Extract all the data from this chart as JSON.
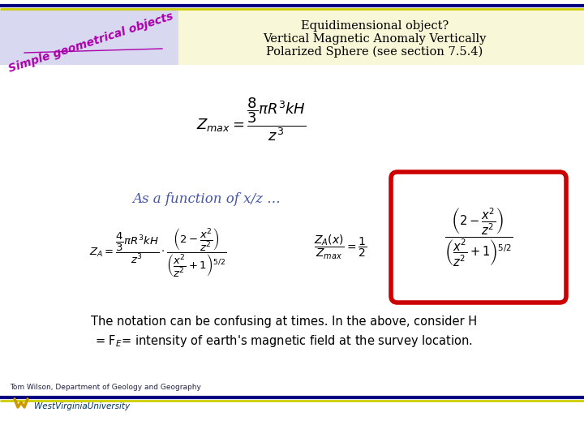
{
  "bg_color": "#ffffff",
  "header_bg": "#d8d8f0",
  "header_right_bg": "#f8f8d8",
  "header_title": "Equidimensional object?\nVertical Magnetic Anomaly Vertically\nPolarized Sphere (see section 7.5.4)",
  "header_title_color": "#000000",
  "logo_text_main": "Tom Wilson, Department of Geology and Geography",
  "logo_text_wvu": "WestVirginiaUniversity",
  "simple_geo_color": "#aa00aa",
  "top_border_dark": "#000080",
  "top_border_light": "#cccc00",
  "bottom_border_dark": "#000080",
  "bottom_border_light": "#cccc00",
  "as_function_color": "#4455aa",
  "red_box_color": "#cc0000",
  "wvu_gold": "#cc9900",
  "wvu_blue": "#003366"
}
